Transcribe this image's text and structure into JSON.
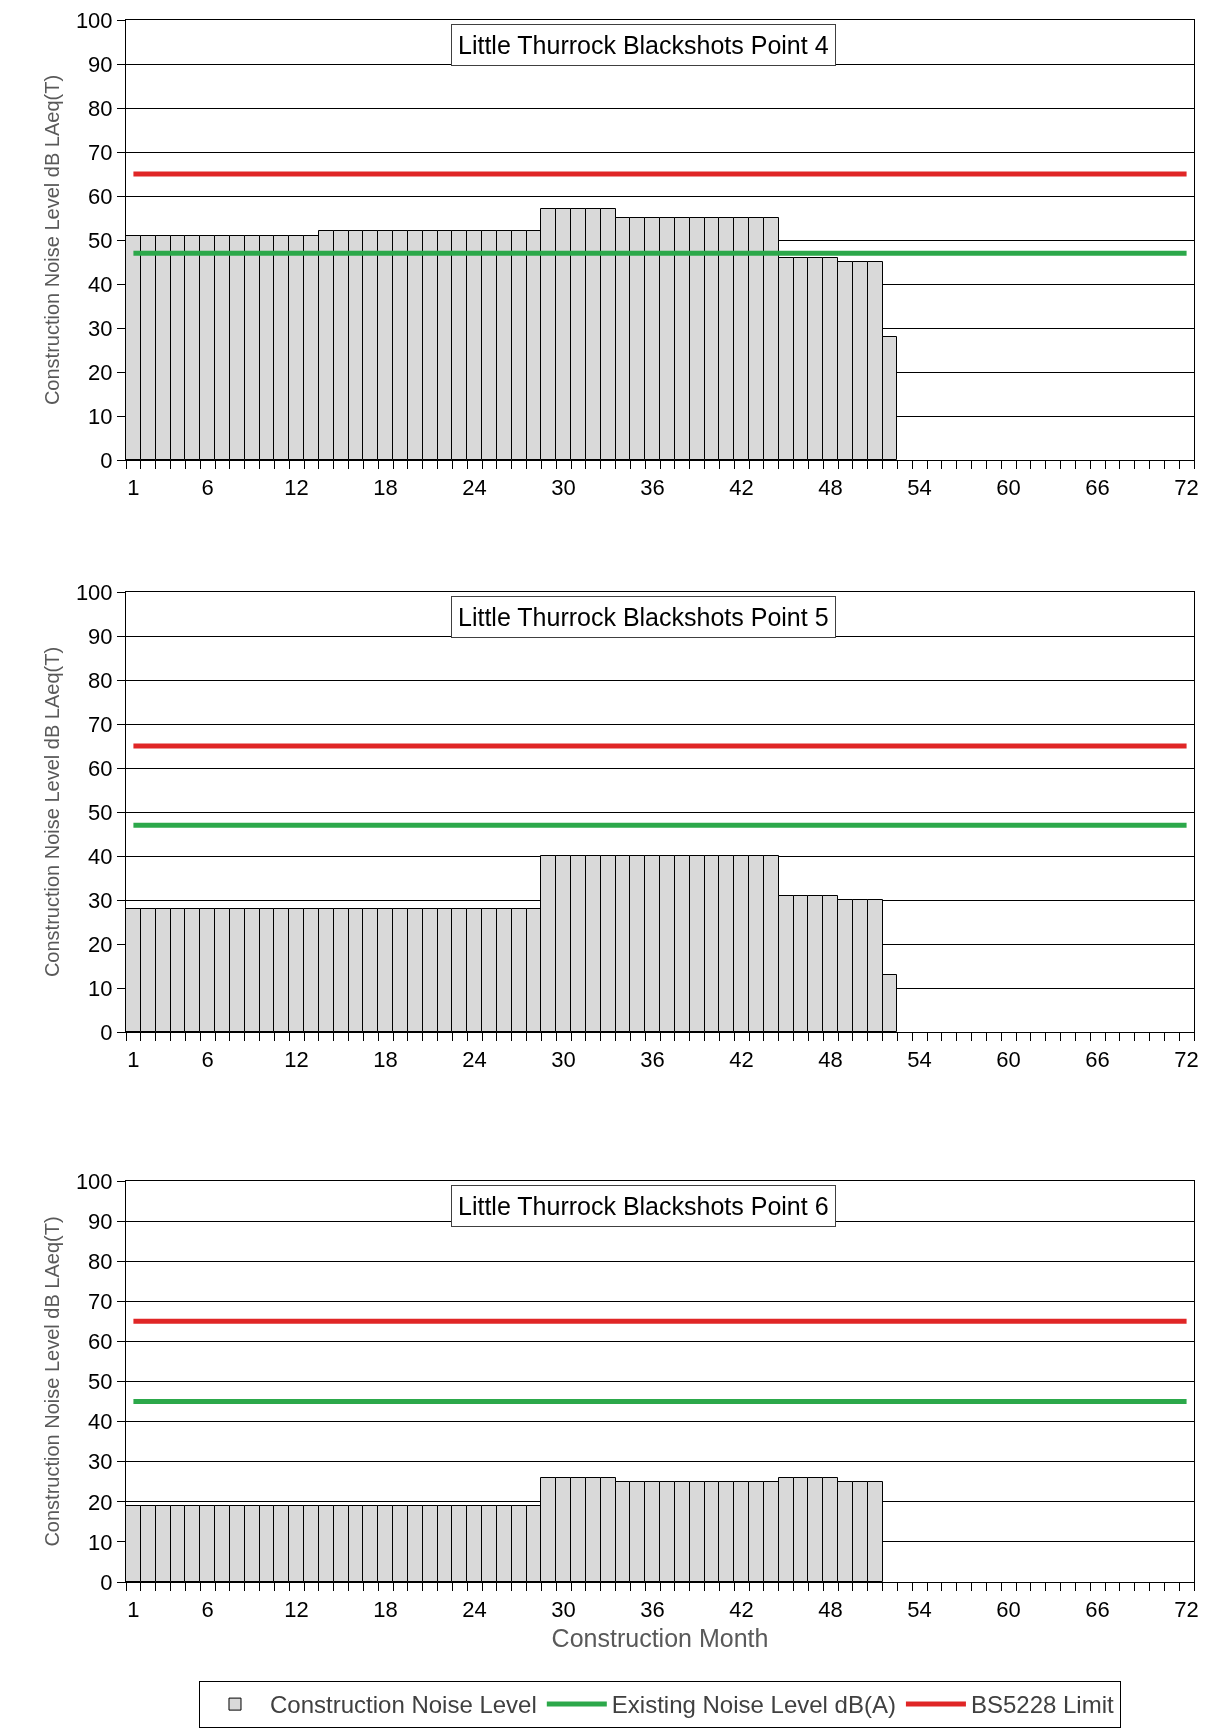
{
  "chart_data": [
    {
      "type": "bar",
      "title": "Little Thurrock Blackshots Point 4",
      "ylabel": "Construction Noise Level dB LAeq(T)",
      "categories": [
        "1",
        null,
        null,
        null,
        null,
        "6",
        null,
        null,
        null,
        null,
        null,
        "12",
        null,
        null,
        null,
        null,
        null,
        "18",
        null,
        null,
        null,
        null,
        null,
        "24",
        null,
        null,
        null,
        null,
        null,
        "30",
        null,
        null,
        null,
        null,
        null,
        "36",
        null,
        null,
        null,
        null,
        null,
        "42",
        null,
        null,
        null,
        null,
        null,
        "48",
        null,
        null,
        null,
        null,
        null,
        "54",
        null,
        null,
        null,
        null,
        null,
        "60",
        null,
        null,
        null,
        null,
        null,
        "66",
        null,
        null,
        null,
        null,
        null,
        "72"
      ],
      "series": [
        {
          "color": "#d9d9d9",
          "values": [
            51,
            51,
            51,
            51,
            51,
            51,
            51,
            51,
            51,
            51,
            51,
            51,
            51,
            52,
            52,
            52,
            52,
            52,
            52,
            52,
            52,
            52,
            52,
            52,
            52,
            52,
            52,
            52,
            57,
            57,
            57,
            57,
            57,
            55,
            55,
            55,
            55,
            55,
            55,
            55,
            55,
            55,
            55,
            55,
            46,
            46,
            46,
            46,
            45,
            45,
            45,
            28,
            null,
            null,
            null,
            null,
            null,
            null,
            null,
            null,
            null,
            null,
            null,
            null,
            null,
            null,
            null,
            null,
            null,
            null,
            null,
            null
          ]
        }
      ],
      "ylim": [
        0,
        100
      ],
      "yticks": [
        0,
        10,
        20,
        30,
        40,
        50,
        60,
        70,
        80,
        90,
        100
      ],
      "grid": "y",
      "ref_lines": [
        {
          "axis": "y",
          "value": 47,
          "color": "#2ca84a"
        },
        {
          "axis": "y",
          "value": 65,
          "color": "#e02626"
        }
      ]
    },
    {
      "type": "bar",
      "title": "Little Thurrock Blackshots Point 5",
      "ylabel": "Construction Noise Level dB LAeq(T)",
      "categories": [
        "1",
        null,
        null,
        null,
        null,
        "6",
        null,
        null,
        null,
        null,
        null,
        "12",
        null,
        null,
        null,
        null,
        null,
        "18",
        null,
        null,
        null,
        null,
        null,
        "24",
        null,
        null,
        null,
        null,
        null,
        "30",
        null,
        null,
        null,
        null,
        null,
        "36",
        null,
        null,
        null,
        null,
        null,
        "42",
        null,
        null,
        null,
        null,
        null,
        "48",
        null,
        null,
        null,
        null,
        null,
        "54",
        null,
        null,
        null,
        null,
        null,
        "60",
        null,
        null,
        null,
        null,
        null,
        "66",
        null,
        null,
        null,
        null,
        null,
        "72"
      ],
      "series": [
        {
          "color": "#d9d9d9",
          "values": [
            28,
            28,
            28,
            28,
            28,
            28,
            28,
            28,
            28,
            28,
            28,
            28,
            28,
            28,
            28,
            28,
            28,
            28,
            28,
            28,
            28,
            28,
            28,
            28,
            28,
            28,
            28,
            28,
            40,
            40,
            40,
            40,
            40,
            40,
            40,
            40,
            40,
            40,
            40,
            40,
            40,
            40,
            40,
            40,
            31,
            31,
            31,
            31,
            30,
            30,
            30,
            13,
            null,
            null,
            null,
            null,
            null,
            null,
            null,
            null,
            null,
            null,
            null,
            null,
            null,
            null,
            null,
            null,
            null,
            null,
            null,
            null
          ]
        }
      ],
      "ylim": [
        0,
        100
      ],
      "yticks": [
        0,
        10,
        20,
        30,
        40,
        50,
        60,
        70,
        80,
        90,
        100
      ],
      "grid": "y",
      "ref_lines": [
        {
          "axis": "y",
          "value": 47,
          "color": "#2ca84a"
        },
        {
          "axis": "y",
          "value": 65,
          "color": "#e02626"
        }
      ]
    },
    {
      "type": "bar",
      "title": "Little Thurrock Blackshots Point 6",
      "ylabel": "Construction Noise Level dB LAeq(T)",
      "xlabel": "Construction Month",
      "categories": [
        "1",
        null,
        null,
        null,
        null,
        "6",
        null,
        null,
        null,
        null,
        null,
        "12",
        null,
        null,
        null,
        null,
        null,
        "18",
        null,
        null,
        null,
        null,
        null,
        "24",
        null,
        null,
        null,
        null,
        null,
        "30",
        null,
        null,
        null,
        null,
        null,
        "36",
        null,
        null,
        null,
        null,
        null,
        "42",
        null,
        null,
        null,
        null,
        null,
        "48",
        null,
        null,
        null,
        null,
        null,
        "54",
        null,
        null,
        null,
        null,
        null,
        "60",
        null,
        null,
        null,
        null,
        null,
        "66",
        null,
        null,
        null,
        null,
        null,
        "72"
      ],
      "series": [
        {
          "name": "Construction Noise Level",
          "color": "#d9d9d9",
          "values": [
            19,
            19,
            19,
            19,
            19,
            19,
            19,
            19,
            19,
            19,
            19,
            19,
            19,
            19,
            19,
            19,
            19,
            19,
            19,
            19,
            19,
            19,
            19,
            19,
            19,
            19,
            19,
            19,
            26,
            26,
            26,
            26,
            26,
            25,
            25,
            25,
            25,
            25,
            25,
            25,
            25,
            25,
            25,
            25,
            26,
            26,
            26,
            26,
            25,
            25,
            25,
            null,
            null,
            null,
            null,
            null,
            null,
            null,
            null,
            null,
            null,
            null,
            null,
            null,
            null,
            null,
            null,
            null,
            null,
            null,
            null,
            null
          ]
        }
      ],
      "ylim": [
        0,
        100
      ],
      "yticks": [
        0,
        10,
        20,
        30,
        40,
        50,
        60,
        70,
        80,
        90,
        100
      ],
      "grid": "y",
      "legend": "bottom",
      "ref_lines": [
        {
          "axis": "y",
          "value": 45,
          "color": "#2ca84a",
          "label": "Existing Noise Level dB(A)"
        },
        {
          "axis": "y",
          "value": 65,
          "color": "#e02626",
          "label": "BS5228 Limit"
        }
      ]
    }
  ]
}
